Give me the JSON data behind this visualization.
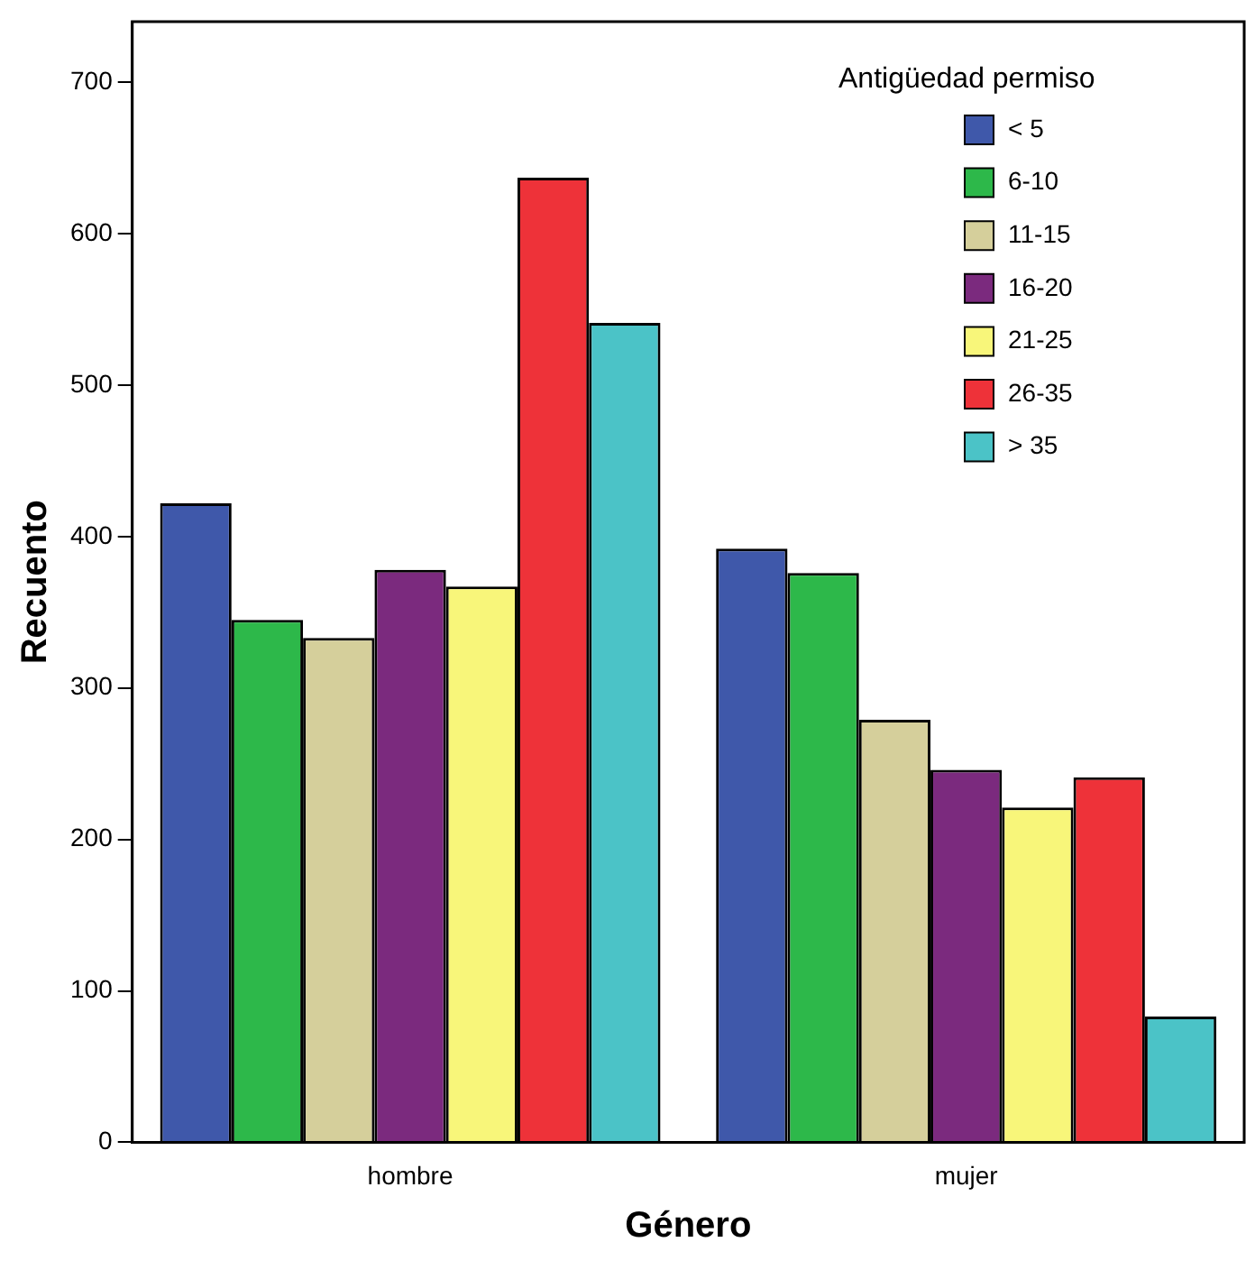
{
  "chart_data": {
    "type": "bar",
    "xlabel": "Género",
    "ylabel": "Recuento",
    "legend_title": "Antigüedad permiso",
    "legend": "top right",
    "grid": false,
    "categories": [
      "hombre",
      "mujer"
    ],
    "ylim": [
      0,
      740
    ],
    "yticks": [
      0,
      100,
      200,
      300,
      400,
      500,
      600,
      700
    ],
    "series": [
      {
        "name": "< 5",
        "color": "#3f58aa",
        "values": [
          422,
          392
        ]
      },
      {
        "name": "6-10",
        "color": "#2db84a",
        "values": [
          345,
          376
        ]
      },
      {
        "name": "11-15",
        "color": "#d5cf9b",
        "values": [
          333,
          279
        ]
      },
      {
        "name": "16-20",
        "color": "#7b2a7e",
        "values": [
          378,
          246
        ]
      },
      {
        "name": "21-25",
        "color": "#f8f67a",
        "values": [
          367,
          221
        ]
      },
      {
        "name": "26-35",
        "color": "#ee3239",
        "values": [
          637,
          241
        ]
      },
      {
        "name": "> 35",
        "color": "#4bc3c7",
        "values": [
          541,
          83
        ]
      }
    ]
  }
}
